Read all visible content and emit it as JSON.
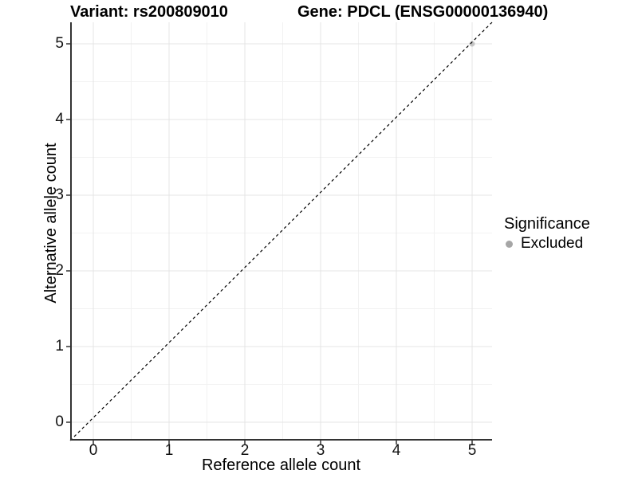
{
  "header": {
    "title_left": "Variant: rs200809010",
    "title_right": "Gene: PDCL (ENSG00000136940)"
  },
  "x_axis": {
    "label": "Reference allele count"
  },
  "y_axis": {
    "label": "Alternative allele count"
  },
  "legend": {
    "title": "Significance",
    "items": [
      {
        "label": "Excluded",
        "color": "#a6a6a6"
      }
    ]
  },
  "chart_data": {
    "type": "scatter",
    "title": "Variant: rs200809010 | Gene: PDCL (ENSG00000136940)",
    "xlabel": "Reference allele count",
    "ylabel": "Alternative allele count",
    "xlim": [
      -0.3,
      5.26
    ],
    "ylim": [
      -0.24,
      5.28
    ],
    "x_ticks": [
      0,
      1,
      2,
      3,
      4,
      5
    ],
    "y_ticks": [
      0,
      1,
      2,
      3,
      4,
      5
    ],
    "grid": {
      "major": true,
      "minor": true,
      "major_color": "#e4e4e4",
      "minor_color": "#f2f2f2"
    },
    "axis_line_color": "#333333",
    "background": "#ffffff",
    "legend_position": "right",
    "series": [
      {
        "name": "Excluded",
        "color": "#9e9e9e",
        "opacity": 0.55,
        "points": [
          [
            5,
            5
          ]
        ]
      }
    ],
    "reference_line": {
      "style": "dashed",
      "equation": "y = x",
      "color": "#000000"
    }
  }
}
